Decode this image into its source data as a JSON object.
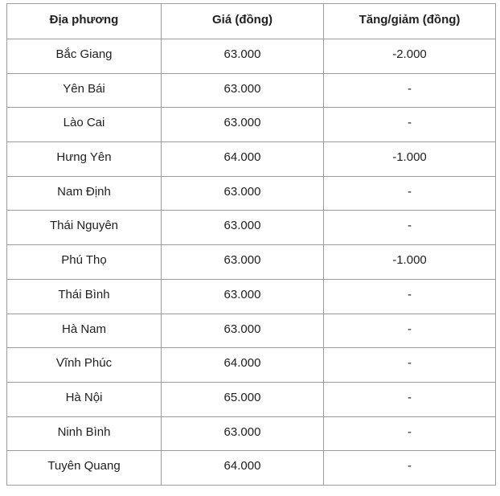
{
  "colors": {
    "border": "#9c9c9c",
    "text": "#212121",
    "background": "#ffffff"
  },
  "table": {
    "columns": [
      "Địa phương",
      "Giá (đồng)",
      "Tăng/giảm (đồng)"
    ],
    "rows": [
      {
        "region": "Bắc Giang",
        "price": "63.000",
        "change": "-2.000"
      },
      {
        "region": "Yên Bái",
        "price": "63.000",
        "change": "-"
      },
      {
        "region": "Lào Cai",
        "price": "63.000",
        "change": "-"
      },
      {
        "region": "Hưng Yên",
        "price": "64.000",
        "change": "-1.000"
      },
      {
        "region": "Nam Định",
        "price": "63.000",
        "change": "-"
      },
      {
        "region": "Thái Nguyên",
        "price": "63.000",
        "change": "-"
      },
      {
        "region": "Phú Thọ",
        "price": "63.000",
        "change": "-1.000"
      },
      {
        "region": "Thái Bình",
        "price": "63.000",
        "change": "-"
      },
      {
        "region": "Hà Nam",
        "price": "63.000",
        "change": "-"
      },
      {
        "region": "Vĩnh Phúc",
        "price": "64.000",
        "change": "-"
      },
      {
        "region": "Hà Nội",
        "price": "65.000",
        "change": "-"
      },
      {
        "region": "Ninh Bình",
        "price": "63.000",
        "change": "-"
      },
      {
        "region": "Tuyên Quang",
        "price": "64.000",
        "change": "-"
      }
    ]
  }
}
